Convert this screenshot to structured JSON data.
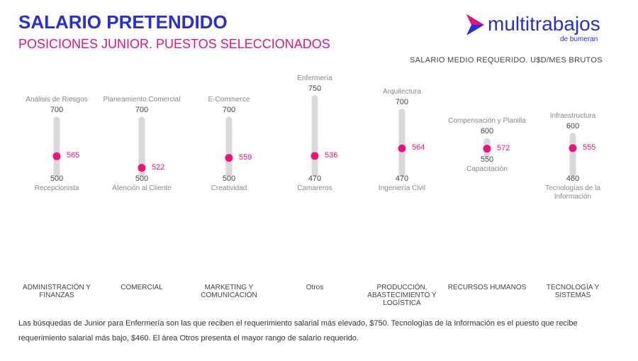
{
  "header": {
    "title": "SALARIO PRETENDIDO",
    "subtitle": "POSICIONES JUNIOR. PUESTOS SELECCIONADOS",
    "logo": "multitrabajos",
    "logo_sub": "de bumeran",
    "unit_note": "SALARIO MEDIO REQUERIDO. U$D/MES BRUTOS"
  },
  "chart_data": {
    "type": "range",
    "categories": [
      "ADMINISTRACIÓN Y FINANZAS",
      "COMERCIAL",
      "MARKETING Y COMUNICACIÓN",
      "Otros",
      "PRODUCCIÓN, ABASTECIMIENTO Y LOGÍSTICA",
      "RECURSOS HUMANOS",
      "TECNOLOGÍA Y SISTEMAS"
    ],
    "max_labels": [
      "Análisis de Riesgos",
      "Planeamiento Comercial",
      "E-Commerce",
      "Enfermería",
      "Arquitectura",
      "Compensación y Planilla",
      "Infraestructura"
    ],
    "max": [
      700,
      700,
      700,
      750,
      700,
      600,
      600
    ],
    "min": [
      500,
      500,
      500,
      470,
      470,
      550,
      460
    ],
    "min_labels": [
      "Recepcionista",
      "Atención al Cliente",
      "Creatividad",
      "Camareros",
      "Ingeniería Civil",
      "Capacitación",
      "Tecnologías de la Información"
    ],
    "mean": [
      565,
      522,
      559,
      536,
      564,
      572,
      555
    ],
    "color": "#f0127a",
    "bar_color": "#d9d9d9"
  },
  "footnote": "Las búsquedas de Junior para Enfermería son las que reciben el requerimiento salarial más elevado, $750. Tecnologías de la Información es el puesto que recibe requerimiento salarial más bajo, $460.  El área Otros presenta el mayor rango de salario requerido."
}
